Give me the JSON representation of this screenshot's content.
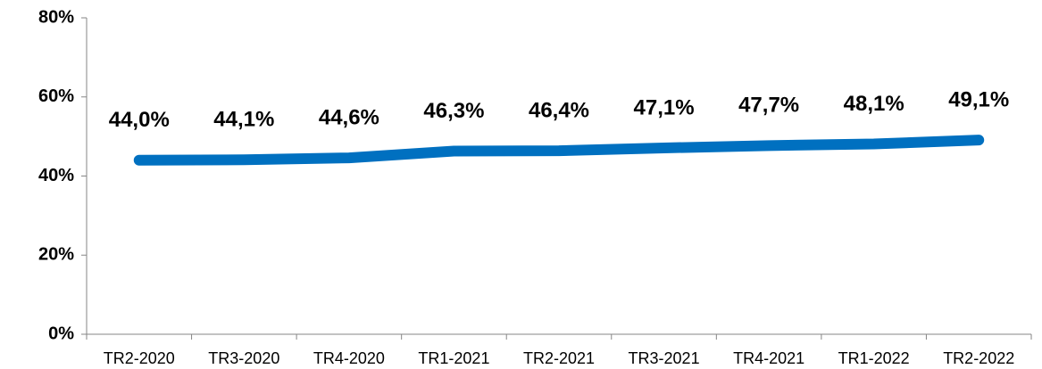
{
  "chart_data": {
    "type": "line",
    "categories": [
      "TR2-2020",
      "TR3-2020",
      "TR4-2020",
      "TR1-2021",
      "TR2-2021",
      "TR3-2021",
      "TR4-2021",
      "TR1-2022",
      "TR2-2022"
    ],
    "series": [
      {
        "color": "#0070c0",
        "values": [
          44.0,
          44.1,
          44.6,
          46.3,
          46.4,
          47.1,
          47.7,
          48.1,
          49.1
        ],
        "value_labels": [
          "44,0%",
          "44,1%",
          "44,6%",
          "46,3%",
          "46,4%",
          "47,1%",
          "47,7%",
          "48,1%",
          "49,1%"
        ]
      }
    ],
    "ylim": [
      0,
      80
    ],
    "yticks": [
      {
        "value": 0,
        "label": "0%"
      },
      {
        "value": 20,
        "label": "20%"
      },
      {
        "value": 40,
        "label": "40%"
      },
      {
        "value": 60,
        "label": "60%"
      },
      {
        "value": 80,
        "label": "80%"
      }
    ],
    "grid": false
  }
}
